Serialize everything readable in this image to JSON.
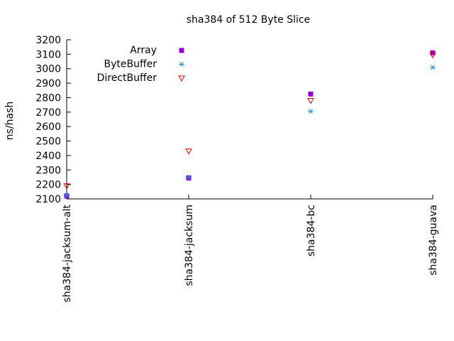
{
  "chart_data": {
    "type": "scatter",
    "title": "sha384 of 512 Byte Slice",
    "xlabel": "",
    "ylabel": "ns/hash",
    "categories": [
      "sha384-jacksum-alt",
      "sha384-jacksum",
      "sha384-bc",
      "sha384-guava"
    ],
    "ylim": [
      2100,
      3200
    ],
    "yticks": [
      2100,
      2200,
      2300,
      2400,
      2500,
      2600,
      2700,
      2800,
      2900,
      3000,
      3100,
      3200
    ],
    "grid": false,
    "legend_position": "top-left",
    "series": [
      {
        "name": "Array",
        "marker": "filled-square",
        "color": "#9400d3",
        "values": [
          2120,
          2245,
          2825,
          3110
        ]
      },
      {
        "name": "ByteBuffer",
        "marker": "asterisk",
        "color": "#1e90e0",
        "values": [
          2125,
          2250,
          2705,
          3010
        ]
      },
      {
        "name": "DirectBuffer",
        "marker": "open-triangle-down",
        "color": "#e00000",
        "values": [
          2190,
          2430,
          2780,
          3095
        ]
      }
    ]
  }
}
